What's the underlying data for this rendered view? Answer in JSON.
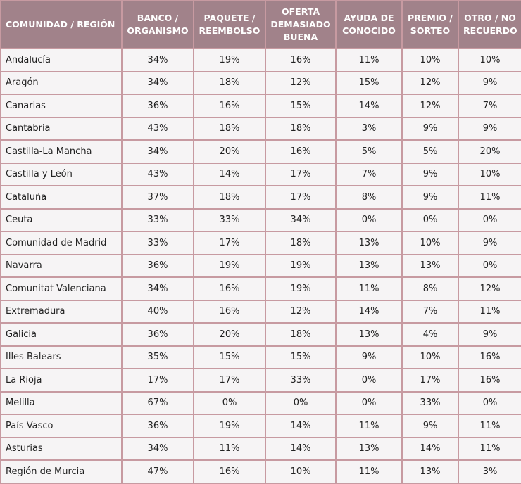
{
  "table": {
    "headers": [
      "COMUNIDAD / REGIÓN",
      "BANCO / ORGANISMO",
      "PAQUETE / REEMBOLSO",
      "OFERTA DEMASIADO BUENA",
      "AYUDA DE CONOCIDO",
      "PREMIO / SORTEO",
      "OTRO / NO RECUERDO"
    ],
    "rows": [
      [
        "Andalucía",
        "34%",
        "19%",
        "16%",
        "11%",
        "10%",
        "10%"
      ],
      [
        "Aragón",
        "34%",
        "18%",
        "12%",
        "15%",
        "12%",
        "9%"
      ],
      [
        "Canarias",
        "36%",
        "16%",
        "15%",
        "14%",
        "12%",
        "7%"
      ],
      [
        "Cantabria",
        "43%",
        "18%",
        "18%",
        "3%",
        "9%",
        "9%"
      ],
      [
        "Castilla-La Mancha",
        "34%",
        "20%",
        "16%",
        "5%",
        "5%",
        "20%"
      ],
      [
        "Castilla y León",
        "43%",
        "14%",
        "17%",
        "7%",
        "9%",
        "10%"
      ],
      [
        "Cataluña",
        "37%",
        "18%",
        "17%",
        "8%",
        "9%",
        "11%"
      ],
      [
        "Ceuta",
        "33%",
        "33%",
        "34%",
        "0%",
        "0%",
        "0%"
      ],
      [
        "Comunidad de Madrid",
        "33%",
        "17%",
        "18%",
        "13%",
        "10%",
        "9%"
      ],
      [
        "Navarra",
        "36%",
        "19%",
        "19%",
        "13%",
        "13%",
        "0%"
      ],
      [
        "Comunitat Valenciana",
        "34%",
        "16%",
        "19%",
        "11%",
        "8%",
        "12%"
      ],
      [
        "Extremadura",
        "40%",
        "16%",
        "12%",
        "14%",
        "7%",
        "11%"
      ],
      [
        "Galicia",
        "36%",
        "20%",
        "18%",
        "13%",
        "4%",
        "9%"
      ],
      [
        "Illes Balears",
        "35%",
        "15%",
        "15%",
        "9%",
        "10%",
        "16%"
      ],
      [
        "La Rioja",
        "17%",
        "17%",
        "33%",
        "0%",
        "17%",
        "16%"
      ],
      [
        "Melilla",
        "67%",
        "0%",
        "0%",
        "0%",
        "33%",
        "0%"
      ],
      [
        "País Vasco",
        "36%",
        "19%",
        "14%",
        "11%",
        "9%",
        "11%"
      ],
      [
        "Asturias",
        "34%",
        "11%",
        "14%",
        "13%",
        "14%",
        "11%"
      ],
      [
        "Región de Murcia",
        "47%",
        "16%",
        "10%",
        "11%",
        "13%",
        "3%"
      ]
    ]
  }
}
